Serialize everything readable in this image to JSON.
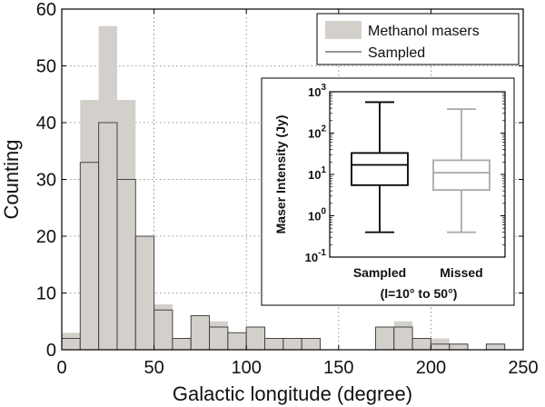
{
  "chart_data": [
    {
      "type": "bar",
      "subtype": "histogram",
      "xlabel": "Galactic longitude (degree)",
      "ylabel": "Counting",
      "xlim": [
        0,
        250
      ],
      "ylim": [
        0,
        60
      ],
      "x_ticks": [
        "0",
        "50",
        "100",
        "150",
        "200",
        "250"
      ],
      "y_ticks": [
        "0",
        "10",
        "20",
        "30",
        "40",
        "50",
        "60"
      ],
      "bin_width": 10,
      "grid": "dotted",
      "legend_position": "top-right",
      "series": [
        {
          "name": "Methanol masers",
          "color": "#d3cfca",
          "bins": [
            {
              "x0": -10,
              "value": 3
            },
            {
              "x0": 0,
              "value": 3
            },
            {
              "x0": 10,
              "value": 44
            },
            {
              "x0": 20,
              "value": 57
            },
            {
              "x0": 30,
              "value": 44
            },
            {
              "x0": 40,
              "value": 20
            },
            {
              "x0": 50,
              "value": 8
            },
            {
              "x0": 60,
              "value": 2
            },
            {
              "x0": 70,
              "value": 6
            },
            {
              "x0": 80,
              "value": 5
            },
            {
              "x0": 90,
              "value": 3
            },
            {
              "x0": 100,
              "value": 4
            },
            {
              "x0": 110,
              "value": 2
            },
            {
              "x0": 120,
              "value": 2
            },
            {
              "x0": 130,
              "value": 2
            },
            {
              "x0": 170,
              "value": 4
            },
            {
              "x0": 180,
              "value": 5
            },
            {
              "x0": 190,
              "value": 2
            },
            {
              "x0": 200,
              "value": 2
            },
            {
              "x0": 210,
              "value": 1
            },
            {
              "x0": 230,
              "value": 1
            }
          ]
        },
        {
          "name": "Sampled",
          "color": "#555555",
          "bins": [
            {
              "x0": -10,
              "value": 2
            },
            {
              "x0": 0,
              "value": 2
            },
            {
              "x0": 10,
              "value": 33
            },
            {
              "x0": 20,
              "value": 40
            },
            {
              "x0": 30,
              "value": 30
            },
            {
              "x0": 40,
              "value": 20
            },
            {
              "x0": 50,
              "value": 7
            },
            {
              "x0": 60,
              "value": 2
            },
            {
              "x0": 70,
              "value": 6
            },
            {
              "x0": 80,
              "value": 4
            },
            {
              "x0": 90,
              "value": 3
            },
            {
              "x0": 100,
              "value": 4
            },
            {
              "x0": 110,
              "value": 2
            },
            {
              "x0": 120,
              "value": 2
            },
            {
              "x0": 130,
              "value": 2
            },
            {
              "x0": 170,
              "value": 4
            },
            {
              "x0": 180,
              "value": 4
            },
            {
              "x0": 190,
              "value": 2
            },
            {
              "x0": 200,
              "value": 1
            },
            {
              "x0": 210,
              "value": 1
            },
            {
              "x0": 230,
              "value": 1
            }
          ]
        }
      ]
    },
    {
      "type": "box",
      "position": "inset, right-center",
      "ylabel": "Maser Intensity (Jy)",
      "yscale": "log",
      "ylim_log10": [
        -1,
        3
      ],
      "y_ticks": [
        {
          "base": "10",
          "exp": "-1",
          "log10": -1
        },
        {
          "base": "10",
          "exp": "0",
          "log10": 0
        },
        {
          "base": "10",
          "exp": "1",
          "log10": 1
        },
        {
          "base": "10",
          "exp": "2",
          "log10": 2
        },
        {
          "base": "10",
          "exp": "3",
          "log10": 3
        }
      ],
      "categories": [
        "Sampled",
        "Missed"
      ],
      "subtitle": "(l=10° to 50°)",
      "boxes": [
        {
          "name": "Sampled",
          "color": "#000000",
          "min": 0.4,
          "q1": 5.5,
          "median": 17,
          "q3": 33,
          "max": 560
        },
        {
          "name": "Missed",
          "color": "#a9a9a9",
          "min": 0.4,
          "q1": 4.2,
          "median": 11,
          "q3": 22,
          "max": 380
        }
      ]
    }
  ]
}
